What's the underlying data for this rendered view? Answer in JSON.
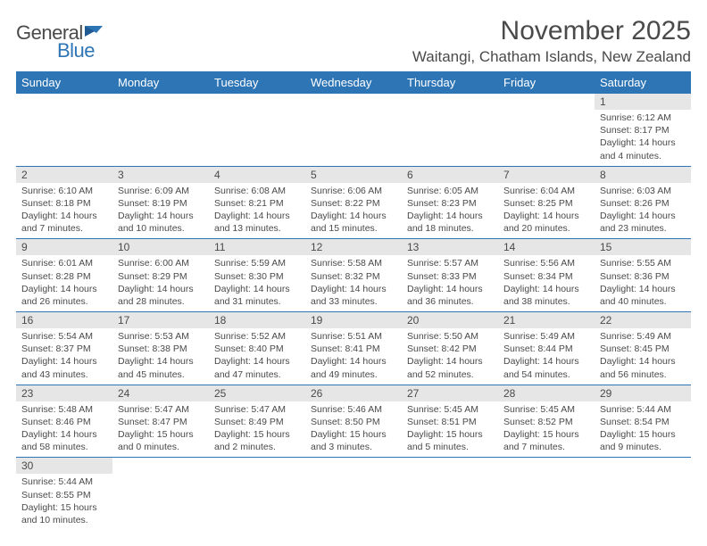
{
  "logo": {
    "text1": "General",
    "text2": "Blue"
  },
  "title": "November 2025",
  "location": "Waitangi, Chatham Islands, New Zealand",
  "colors": {
    "header_bg": "#2e75b6",
    "header_text": "#ffffff",
    "daynum_bg": "#e6e6e6",
    "text": "#4a4a4a",
    "rule": "#2e75b6"
  },
  "weekdays": [
    "Sunday",
    "Monday",
    "Tuesday",
    "Wednesday",
    "Thursday",
    "Friday",
    "Saturday"
  ],
  "weeks": [
    [
      null,
      null,
      null,
      null,
      null,
      null,
      {
        "n": "1",
        "sr": "6:12 AM",
        "ss": "8:17 PM",
        "dh": "14",
        "dm": "4"
      }
    ],
    [
      {
        "n": "2",
        "sr": "6:10 AM",
        "ss": "8:18 PM",
        "dh": "14",
        "dm": "7"
      },
      {
        "n": "3",
        "sr": "6:09 AM",
        "ss": "8:19 PM",
        "dh": "14",
        "dm": "10"
      },
      {
        "n": "4",
        "sr": "6:08 AM",
        "ss": "8:21 PM",
        "dh": "14",
        "dm": "13"
      },
      {
        "n": "5",
        "sr": "6:06 AM",
        "ss": "8:22 PM",
        "dh": "14",
        "dm": "15"
      },
      {
        "n": "6",
        "sr": "6:05 AM",
        "ss": "8:23 PM",
        "dh": "14",
        "dm": "18"
      },
      {
        "n": "7",
        "sr": "6:04 AM",
        "ss": "8:25 PM",
        "dh": "14",
        "dm": "20"
      },
      {
        "n": "8",
        "sr": "6:03 AM",
        "ss": "8:26 PM",
        "dh": "14",
        "dm": "23"
      }
    ],
    [
      {
        "n": "9",
        "sr": "6:01 AM",
        "ss": "8:28 PM",
        "dh": "14",
        "dm": "26"
      },
      {
        "n": "10",
        "sr": "6:00 AM",
        "ss": "8:29 PM",
        "dh": "14",
        "dm": "28"
      },
      {
        "n": "11",
        "sr": "5:59 AM",
        "ss": "8:30 PM",
        "dh": "14",
        "dm": "31"
      },
      {
        "n": "12",
        "sr": "5:58 AM",
        "ss": "8:32 PM",
        "dh": "14",
        "dm": "33"
      },
      {
        "n": "13",
        "sr": "5:57 AM",
        "ss": "8:33 PM",
        "dh": "14",
        "dm": "36"
      },
      {
        "n": "14",
        "sr": "5:56 AM",
        "ss": "8:34 PM",
        "dh": "14",
        "dm": "38"
      },
      {
        "n": "15",
        "sr": "5:55 AM",
        "ss": "8:36 PM",
        "dh": "14",
        "dm": "40"
      }
    ],
    [
      {
        "n": "16",
        "sr": "5:54 AM",
        "ss": "8:37 PM",
        "dh": "14",
        "dm": "43"
      },
      {
        "n": "17",
        "sr": "5:53 AM",
        "ss": "8:38 PM",
        "dh": "14",
        "dm": "45"
      },
      {
        "n": "18",
        "sr": "5:52 AM",
        "ss": "8:40 PM",
        "dh": "14",
        "dm": "47"
      },
      {
        "n": "19",
        "sr": "5:51 AM",
        "ss": "8:41 PM",
        "dh": "14",
        "dm": "49"
      },
      {
        "n": "20",
        "sr": "5:50 AM",
        "ss": "8:42 PM",
        "dh": "14",
        "dm": "52"
      },
      {
        "n": "21",
        "sr": "5:49 AM",
        "ss": "8:44 PM",
        "dh": "14",
        "dm": "54"
      },
      {
        "n": "22",
        "sr": "5:49 AM",
        "ss": "8:45 PM",
        "dh": "14",
        "dm": "56"
      }
    ],
    [
      {
        "n": "23",
        "sr": "5:48 AM",
        "ss": "8:46 PM",
        "dh": "14",
        "dm": "58"
      },
      {
        "n": "24",
        "sr": "5:47 AM",
        "ss": "8:47 PM",
        "dh": "15",
        "dm": "0"
      },
      {
        "n": "25",
        "sr": "5:47 AM",
        "ss": "8:49 PM",
        "dh": "15",
        "dm": "2"
      },
      {
        "n": "26",
        "sr": "5:46 AM",
        "ss": "8:50 PM",
        "dh": "15",
        "dm": "3"
      },
      {
        "n": "27",
        "sr": "5:45 AM",
        "ss": "8:51 PM",
        "dh": "15",
        "dm": "5"
      },
      {
        "n": "28",
        "sr": "5:45 AM",
        "ss": "8:52 PM",
        "dh": "15",
        "dm": "7"
      },
      {
        "n": "29",
        "sr": "5:44 AM",
        "ss": "8:54 PM",
        "dh": "15",
        "dm": "9"
      }
    ],
    [
      {
        "n": "30",
        "sr": "5:44 AM",
        "ss": "8:55 PM",
        "dh": "15",
        "dm": "10"
      },
      null,
      null,
      null,
      null,
      null,
      null
    ]
  ]
}
